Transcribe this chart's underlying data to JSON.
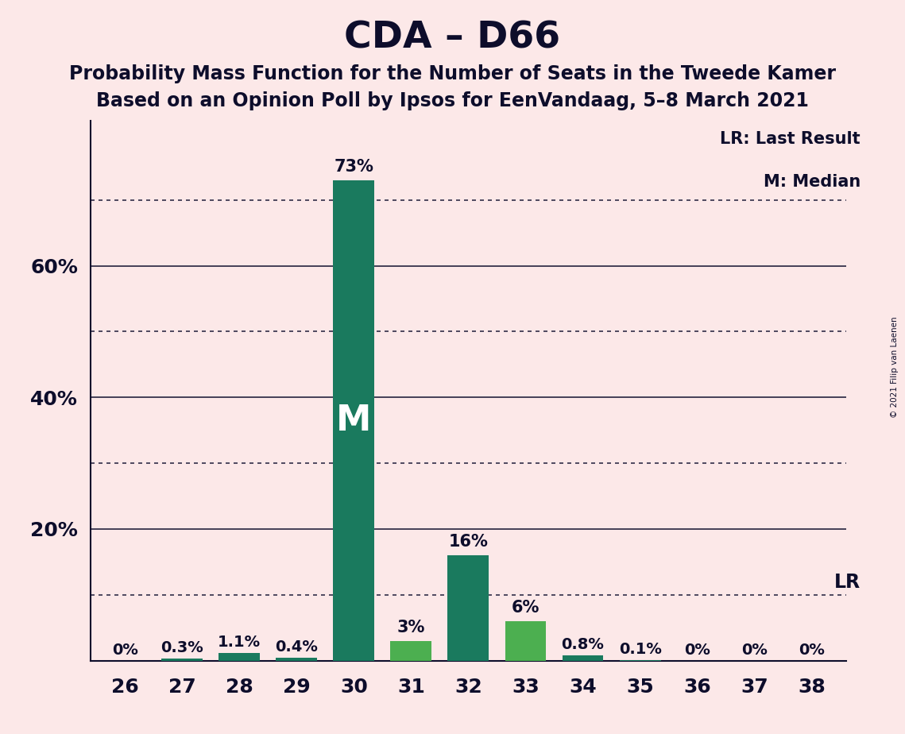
{
  "title": "CDA – D66",
  "subtitle1": "Probability Mass Function for the Number of Seats in the Tweede Kamer",
  "subtitle2": "Based on an Opinion Poll by Ipsos for EenVandaag, 5–8 March 2021",
  "copyright": "© 2021 Filip van Laenen",
  "categories": [
    26,
    27,
    28,
    29,
    30,
    31,
    32,
    33,
    34,
    35,
    36,
    37,
    38
  ],
  "values": [
    0.0,
    0.3,
    1.1,
    0.4,
    73.0,
    3.0,
    16.0,
    6.0,
    0.8,
    0.1,
    0.0,
    0.0,
    0.0
  ],
  "bar_colors": [
    "#1a7a5e",
    "#1a7a5e",
    "#1a7a5e",
    "#1a7a5e",
    "#1a7a5e",
    "#4caf50",
    "#1a7a5e",
    "#4caf50",
    "#1a7a5e",
    "#1a7a5e",
    "#1a7a5e",
    "#1a7a5e",
    "#1a7a5e"
  ],
  "labels": [
    "0%",
    "0.3%",
    "1.1%",
    "0.4%",
    "73%",
    "3%",
    "16%",
    "6%",
    "0.8%",
    "0.1%",
    "0%",
    "0%",
    "0%"
  ],
  "median_seat": 30,
  "lr_value": 10.0,
  "background_color": "#fce8e8",
  "title_fontsize": 34,
  "subtitle_fontsize": 17,
  "yticks": [
    20,
    40,
    60
  ],
  "ylim": [
    0,
    82
  ],
  "dotted_lines": [
    10,
    30,
    50,
    70
  ],
  "solid_lines": [
    20,
    40,
    60
  ],
  "bar_text_color_inside": "#ffffff",
  "bar_text_color_outside": "#0d0d2b",
  "legend_lr": "LR: Last Result",
  "legend_m": "M: Median",
  "lr_label": "LR",
  "text_color": "#0d0d2b"
}
